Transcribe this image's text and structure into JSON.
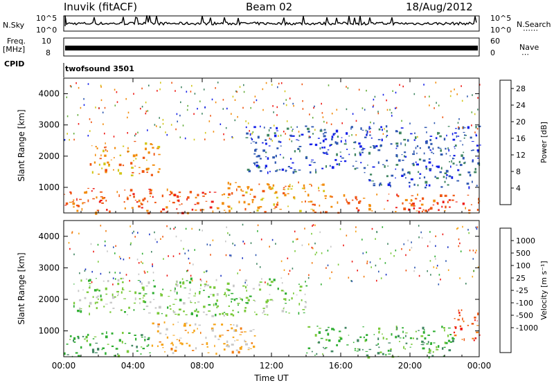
{
  "header": {
    "station": "Inuvik (fitACF)",
    "beam": "Beam 02",
    "date": "18/Aug/2012"
  },
  "strip": {
    "nsky_label": "N.Sky",
    "nsky_ticks": [
      "10^5",
      "10^0"
    ],
    "nsearch_label": "N.Search",
    "nsearch_ticks": [
      "10^5",
      "10^0"
    ],
    "freq_label": "Freq.",
    "freq_unit": "[MHz]",
    "freq_ticks": [
      "10",
      "8"
    ],
    "nave_label": "Nave",
    "nave_ticks": [
      "60",
      "0"
    ],
    "cpid_label": "CPID",
    "cpid_value": "twofsound 3501"
  },
  "chart_data": [
    {
      "type": "heatmap",
      "title": "",
      "xlabel": "Time UT",
      "ylabel": "Slant Range [km]",
      "x_ticks": [
        "00:00",
        "04:00",
        "08:00",
        "12:00",
        "16:00",
        "20:00",
        "00:00"
      ],
      "xlim": [
        0,
        24
      ],
      "ylim": [
        180,
        4500
      ],
      "y_ticks": [
        1000,
        2000,
        3000,
        4000
      ],
      "colorbar": {
        "label": "Power [dB]",
        "ticks": [
          4,
          8,
          12,
          16,
          20,
          24,
          28
        ],
        "range": [
          0,
          30
        ],
        "colors": [
          "#1420e8",
          "#2f58b0",
          "#3f8560",
          "#66ad3c",
          "#d3c61a",
          "#f28c0c",
          "#ef5612",
          "#ee1b16"
        ]
      },
      "features": [
        {
          "t0": 0.0,
          "t1": 9.0,
          "r0": 200,
          "r1": 1000,
          "level": 26
        },
        {
          "t0": 1.5,
          "t1": 5.5,
          "r0": 1400,
          "r1": 2500,
          "level": 20
        },
        {
          "t0": 9.0,
          "t1": 15.0,
          "r0": 200,
          "r1": 1200,
          "level": 22
        },
        {
          "t0": 15.0,
          "t1": 24.0,
          "r0": 200,
          "r1": 800,
          "level": 24
        },
        {
          "t0": 10.5,
          "t1": 17.0,
          "r0": 1500,
          "r1": 3000,
          "level": 6
        },
        {
          "t0": 17.0,
          "t1": 24.0,
          "r0": 1000,
          "r1": 3000,
          "level": 6
        }
      ]
    },
    {
      "type": "heatmap",
      "title": "",
      "xlabel": "Time UT",
      "ylabel": "Slant Range [km]",
      "x_ticks": [
        "00:00",
        "04:00",
        "08:00",
        "12:00",
        "16:00",
        "20:00",
        "00:00"
      ],
      "xlim": [
        0,
        24
      ],
      "ylim": [
        180,
        4500
      ],
      "y_ticks": [
        1000,
        2000,
        3000,
        4000
      ],
      "colorbar": {
        "label": "Velocity [m s⁻¹]",
        "ticks": [
          "1000",
          "500",
          "100",
          "25",
          "-25",
          "-100",
          "-500",
          "-1000"
        ],
        "colors": [
          "#1c36c4",
          "#2f58b0",
          "#3f8560",
          "#2fae32",
          "#7ac93a",
          "#c8c8c8",
          "#f6a51a",
          "#f07c12",
          "#ef5612",
          "#ee1b16"
        ]
      },
      "features": [
        {
          "t0": 0.0,
          "t1": 5.0,
          "r0": 200,
          "r1": 1000,
          "level": "-100"
        },
        {
          "t0": 5.0,
          "t1": 11.0,
          "r0": 300,
          "r1": 1300,
          "level": "100"
        },
        {
          "t0": 0.5,
          "t1": 14.0,
          "r0": 1500,
          "r1": 2700,
          "level": "-25"
        },
        {
          "t0": 14.0,
          "t1": 22.5,
          "r0": 200,
          "r1": 1200,
          "level": "-100"
        },
        {
          "t0": 22.5,
          "t1": 24.0,
          "r0": 700,
          "r1": 1800,
          "level": "1000"
        }
      ]
    }
  ]
}
